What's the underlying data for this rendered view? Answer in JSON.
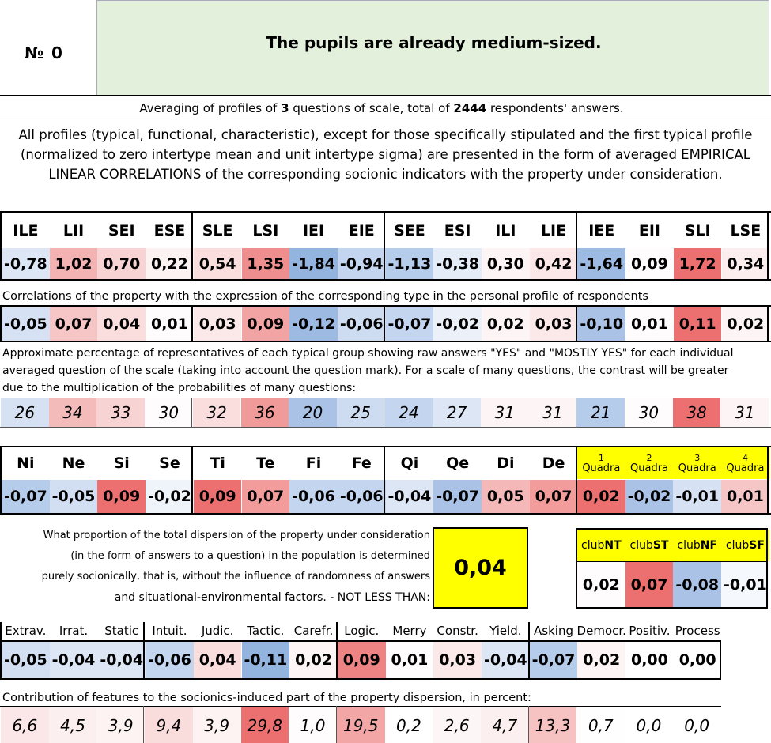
{
  "header": {
    "num_label": "№",
    "num_value": "0",
    "title": "The pupils are already medium-sized."
  },
  "averaging": {
    "prefix": "Averaging of profiles of ",
    "count": "3",
    "middle": " questions of scale, total of ",
    "respondents": "2444",
    "suffix": " respondents' answers."
  },
  "description": "All profiles (typical, functional, characteristic), except for those specifically stipulated and the first typical profile (normalized to zero intertype mean and unit intertype sigma) are presented in the form of averaged EMPIRICAL LINEAR CORRELATIONS of the corresponding socionic indicators with the property under consideration.",
  "types": [
    "ILE",
    "LII",
    "SEI",
    "ESE",
    "SLE",
    "LSI",
    "IEI",
    "EIE",
    "SEE",
    "ESI",
    "ILI",
    "LIE",
    "IEE",
    "EII",
    "SLI",
    "LSE"
  ],
  "type_values": [
    "-0,78",
    "1,02",
    "0,70",
    "0,22",
    "0,54",
    "1,35",
    "-1,84",
    "-0,94",
    "-1,13",
    "-0,38",
    "0,30",
    "0,42",
    "-1,64",
    "0,09",
    "1,72",
    "0,34"
  ],
  "type_value_colors": [
    "#dce6f4",
    "#f3b3b3",
    "#f8d3d3",
    "#fdf2f2",
    "#fadede",
    "#ef8e8e",
    "#94b4e0",
    "#c3d5ef",
    "#b6cceb",
    "#e4ecf7",
    "#fdf5f5",
    "#fbe7e7",
    "#9dbae2",
    "#fefcfc",
    "#ec7070",
    "#fceeee"
  ],
  "corr_caption": "Correlations of the property with the expression of the corresponding type in the personal profile of respondents",
  "corr_values": [
    "-0,05",
    "0,07",
    "0,04",
    "0,01",
    "0,03",
    "0,09",
    "-0,12",
    "-0,06",
    "-0,07",
    "-0,02",
    "0,02",
    "0,03",
    "-0,10",
    "0,01",
    "0,11",
    "0,02"
  ],
  "corr_colors": [
    "#d6e2f3",
    "#f6c6c6",
    "#fadede",
    "#fefcfc",
    "#fbe8e8",
    "#f2a3a3",
    "#9dbae2",
    "#cddcf1",
    "#c3d5ef",
    "#ecf1f9",
    "#fdf5f5",
    "#fbe8e8",
    "#a9c2e6",
    "#fefcfc",
    "#ec7070",
    "#fdf5f5"
  ],
  "pct_caption": "Approximate percentage of representatives of each typical group showing raw answers \"YES\" and \"MOSTLY YES\" for each individual averaged question of the scale (taking into account the question mark). For a scale of many questions, the contrast will be greater due to the multiplication of the probabilities of many questions:",
  "pct_values": [
    "26",
    "34",
    "33",
    "30",
    "32",
    "36",
    "20",
    "25",
    "24",
    "27",
    "31",
    "31",
    "21",
    "30",
    "38",
    "31"
  ],
  "pct_colors": [
    "#d6e2f3",
    "#f4bbbb",
    "#f8d3d3",
    "#fefcfc",
    "#fadede",
    "#f09a9a",
    "#a9c2e6",
    "#cddcf1",
    "#c3d5ef",
    "#dce6f4",
    "#fdf5f5",
    "#fdf5f5",
    "#b6cceb",
    "#fefcfc",
    "#ec7070",
    "#fdf5f5"
  ],
  "functions": [
    "Ni",
    "Ne",
    "Si",
    "Se",
    "Ti",
    "Te",
    "Fi",
    "Fe",
    "Qi",
    "Qe",
    "Di",
    "De"
  ],
  "function_values": [
    "-0,07",
    "-0,05",
    "0,09",
    "-0,02",
    "0,09",
    "0,07",
    "-0,06",
    "-0,06",
    "-0,04",
    "-0,07",
    "0,05",
    "0,07"
  ],
  "function_colors": [
    "#b6cceb",
    "#d2dff2",
    "#ec7070",
    "#eff3fa",
    "#ec7070",
    "#f29c9c",
    "#c3d5ef",
    "#c3d5ef",
    "#dce6f4",
    "#a9c2e6",
    "#f5b8b8",
    "#f29c9c"
  ],
  "quadras": [
    {
      "num": "1",
      "label": "Quadra"
    },
    {
      "num": "2",
      "label": "Quadra"
    },
    {
      "num": "3",
      "label": "Quadra"
    },
    {
      "num": "4",
      "label": "Quadra"
    }
  ],
  "quadra_values": [
    "0,02",
    "-0,02",
    "-0,01",
    "0,01"
  ],
  "quadra_colors": [
    "#ec7070",
    "#a9c2e6",
    "#d6e2f3",
    "#f6c6c6"
  ],
  "dispersion_text": [
    "What proportion of the total dispersion of the property under consideration",
    "(in the form of answers to a question) in the population is determined",
    "purely socionically, that is, without the influence of randomness of answers",
    "and situational-environmental factors. - NOT LESS THAN:"
  ],
  "dispersion_value": "0,04",
  "clubs": [
    {
      "prefix": "club",
      "suffix": "NT"
    },
    {
      "prefix": "club",
      "suffix": "ST"
    },
    {
      "prefix": "club",
      "suffix": "NF"
    },
    {
      "prefix": "club",
      "suffix": "SF"
    }
  ],
  "club_values": [
    "0,02",
    "0,07",
    "-0,08",
    "-0,01"
  ],
  "club_colors": [
    "#fefcfc",
    "#ec7070",
    "#a9c2e6",
    "#f5f8fc"
  ],
  "features": [
    "Extrav.",
    "Irrat.",
    "Static",
    "Intuit.",
    "Judic.",
    "Tactic.",
    "Carefr.",
    "Logic.",
    "Merry",
    "Constr.",
    "Yield.",
    "Asking",
    "Democr.",
    "Positiv.",
    "Process"
  ],
  "feature_values": [
    "-0,05",
    "-0,04",
    "-0,04",
    "-0,06",
    "0,04",
    "-0,11",
    "0,02",
    "0,09",
    "0,01",
    "0,03",
    "-0,04",
    "-0,07",
    "0,02",
    "0,00",
    "0,00"
  ],
  "feature_colors": [
    "#d2dff2",
    "#dce6f4",
    "#dce6f4",
    "#c3d5ef",
    "#fadede",
    "#94b4e0",
    "#fdf5f5",
    "#ee8383",
    "#fefcfc",
    "#fbe8e8",
    "#dce6f4",
    "#b6cceb",
    "#fdf5f5",
    "#ffffff",
    "#ffffff"
  ],
  "contrib_caption": "Contribution of features to the socionics-induced part of the property dispersion, in percent:",
  "contrib_values": [
    "6,6",
    "4,5",
    "3,9",
    "9,4",
    "3,9",
    "29,8",
    "1,0",
    "19,5",
    "0,2",
    "2,6",
    "4,7",
    "13,3",
    "0,7",
    "0,0",
    "0,0"
  ],
  "contrib_colors": [
    "#fbe7e7",
    "#fcefef",
    "#fdf3f3",
    "#f9dcdc",
    "#fdf3f3",
    "#ec7070",
    "#fefcfc",
    "#f2a6a6",
    "#ffffff",
    "#fdf6f6",
    "#fcefef",
    "#f6c2c2",
    "#fefefe",
    "#ffffff",
    "#ffffff"
  ]
}
